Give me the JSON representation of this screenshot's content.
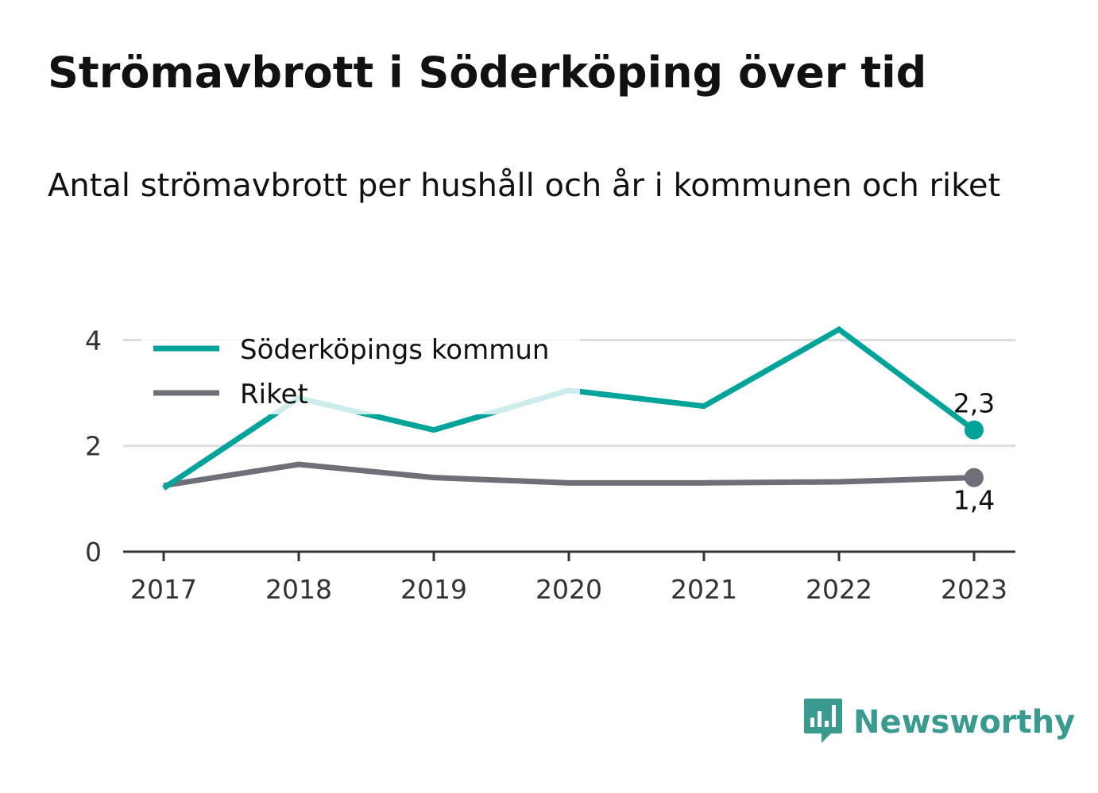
{
  "chart_data": {
    "type": "line",
    "title": "Strömavbrott i Söderköping över tid",
    "subtitle": "Antal strömavbrott per hushåll och år i kommunen och riket",
    "categories": [
      "2017",
      "2018",
      "2019",
      "2020",
      "2021",
      "2022",
      "2023"
    ],
    "series": [
      {
        "name": "Söderköpings kommun",
        "color": "#00a39a",
        "values": [
          1.2,
          2.9,
          2.3,
          3.05,
          2.75,
          4.2,
          2.3
        ],
        "end_label": "2,3"
      },
      {
        "name": "Riket",
        "color": "#6f6f77",
        "values": [
          1.25,
          1.65,
          1.4,
          1.3,
          1.3,
          1.32,
          1.4
        ],
        "end_label": "1,4"
      }
    ],
    "y_ticks": [
      "0",
      "2",
      "4"
    ],
    "ylim": [
      0,
      4.5
    ],
    "grid": true,
    "legend": "top-left"
  },
  "brand": {
    "name": "Newsworthy",
    "icon": "newsworthy-logo-icon"
  }
}
